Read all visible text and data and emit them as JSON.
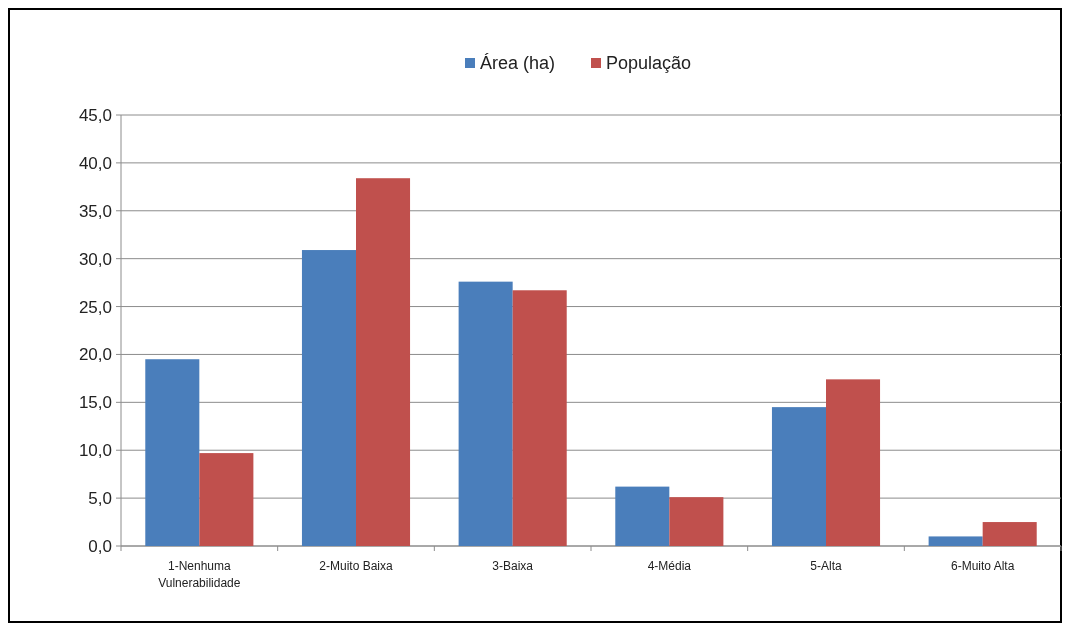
{
  "chart_data": {
    "type": "bar",
    "categories": [
      "1-Nenhuma Vulnerabilidade",
      "2-Muito Baixa",
      "3-Baixa",
      "4-Média",
      "5-Alta",
      "6-Muito Alta"
    ],
    "series": [
      {
        "name": "Área (ha)",
        "color": "#4a7ebb",
        "values": [
          19.5,
          30.9,
          27.6,
          6.2,
          14.5,
          1.0
        ]
      },
      {
        "name": "População",
        "color": "#c0504d",
        "values": [
          9.7,
          38.4,
          26.7,
          5.1,
          17.4,
          2.5
        ]
      }
    ],
    "ylim": [
      0,
      45
    ],
    "yticks": [
      {
        "value": 0,
        "label": "0,0"
      },
      {
        "value": 5,
        "label": "5,0"
      },
      {
        "value": 10,
        "label": "10,0"
      },
      {
        "value": 15,
        "label": "15,0"
      },
      {
        "value": 20,
        "label": "20,0"
      },
      {
        "value": 25,
        "label": "25,0"
      },
      {
        "value": 30,
        "label": "30,0"
      },
      {
        "value": 35,
        "label": "35,0"
      },
      {
        "value": 40,
        "label": "40,0"
      },
      {
        "value": 45,
        "label": "45,0"
      }
    ],
    "grid": "y",
    "legend": "top"
  }
}
